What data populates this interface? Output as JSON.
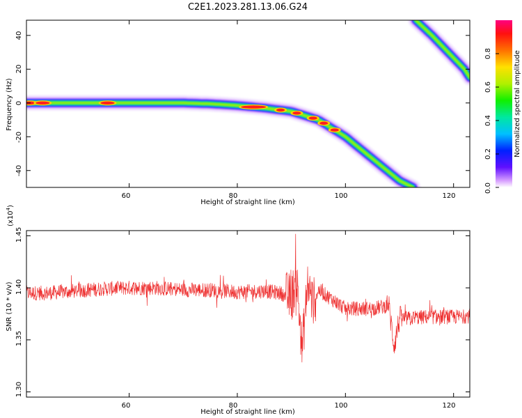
{
  "title": "C2E1.2023.281.13.06.G24",
  "chart_data": [
    {
      "type": "heatmap",
      "xlabel": "Height of straight line (km)",
      "ylabel": "Frequency (Hz)",
      "xlim": [
        41,
        123
      ],
      "ylim": [
        -50,
        49
      ],
      "xticks": [
        "60",
        "80",
        "100",
        "120"
      ],
      "yticks": [
        "40",
        "20",
        "0",
        "-20",
        "-40"
      ],
      "ridges": [
        {
          "name": "main",
          "x": [
            41,
            50,
            60,
            70,
            75,
            80,
            85,
            90,
            95,
            100,
            105,
            110,
            112.5
          ],
          "y": [
            0,
            0,
            0,
            0,
            -0.5,
            -1.5,
            -3,
            -5,
            -10,
            -20,
            -33,
            -46,
            -50
          ]
        },
        {
          "name": "aliased",
          "x": [
            113,
            116,
            119,
            122,
            123
          ],
          "y": [
            49,
            40,
            30,
            20,
            15
          ]
        }
      ],
      "colorbar": {
        "label": "Normalized spectral amplitude",
        "ticks": [
          "0.0",
          "0.2",
          "0.4",
          "0.6",
          "0.8"
        ],
        "range": [
          0,
          1
        ]
      }
    },
    {
      "type": "line",
      "xlabel": "Height of straight line (km)",
      "ylabel": "SNR (10 * v/v)",
      "multiplier": "(x10",
      "multiplier_exp": "4",
      "multiplier_close": ")",
      "xlim": [
        41,
        123
      ],
      "ylim": [
        1.295,
        1.455
      ],
      "xticks": [
        "60",
        "80",
        "100",
        "120"
      ],
      "yticks": [
        "1.45",
        "1.40",
        "1.35",
        "1.30"
      ],
      "color": "#ee3030",
      "series": [
        {
          "x": [
            41,
            45,
            50,
            55,
            60,
            65,
            70,
            75,
            80,
            85,
            88,
            90,
            91,
            92,
            93,
            94,
            95,
            100,
            105,
            108,
            109,
            110,
            115,
            120,
            123
          ],
          "y": [
            1.395,
            1.395,
            1.397,
            1.399,
            1.4,
            1.4,
            1.398,
            1.398,
            1.396,
            1.397,
            1.395,
            1.39,
            1.408,
            1.34,
            1.405,
            1.385,
            1.398,
            1.38,
            1.38,
            1.383,
            1.345,
            1.37,
            1.372,
            1.372,
            1.373
          ]
        }
      ]
    }
  ]
}
